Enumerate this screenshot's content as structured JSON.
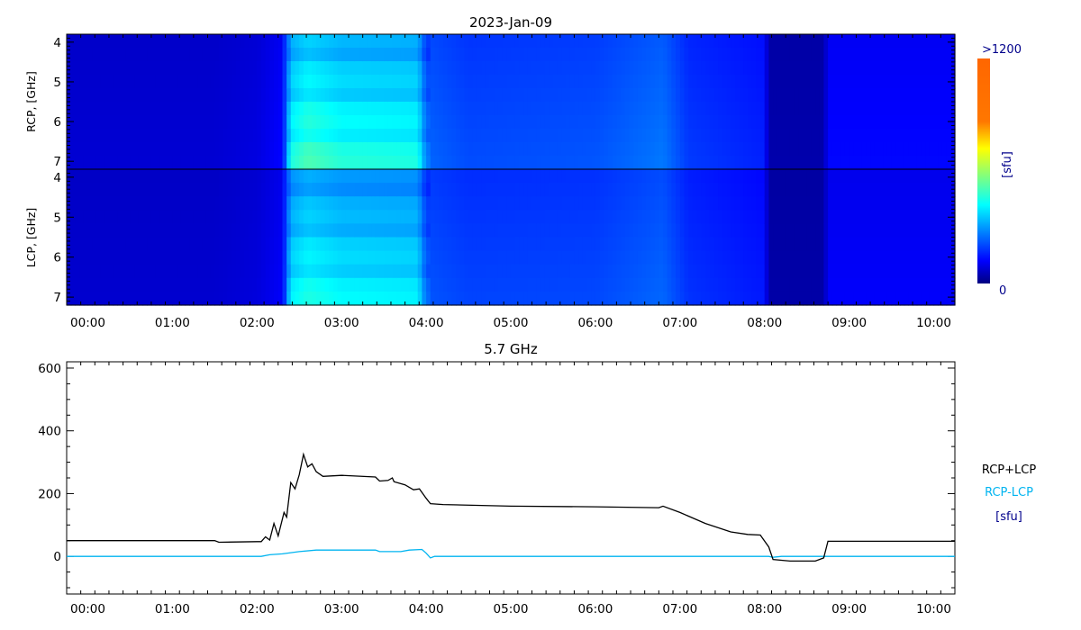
{
  "chart_data": [
    {
      "type": "heatmap",
      "title": "2023-Jan-09",
      "panels": [
        {
          "name": "RCP",
          "ylabel": "RCP, [GHz]"
        },
        {
          "name": "LCP",
          "ylabel": "LCP, [GHz]"
        }
      ],
      "yticks": [
        "4",
        "5",
        "6",
        "7"
      ],
      "ylim": [
        3.8,
        7.2
      ],
      "xlim_hours": [
        -0.25,
        10.25
      ],
      "xticks": [
        "00:00",
        "01:00",
        "02:00",
        "03:00",
        "04:00",
        "05:00",
        "06:00",
        "07:00",
        "08:00",
        "09:00",
        "10:00"
      ],
      "colorbar": {
        "max_label": ">1200",
        "min_label": "0",
        "unit": "[sfu]",
        "range": [
          0,
          1200
        ],
        "colormap": "jet"
      },
      "intensity_profile_sfu": {
        "RCP": [
          [
            -0.25,
            95
          ],
          [
            1.5,
            95
          ],
          [
            2.0,
            110
          ],
          [
            2.3,
            150
          ],
          [
            2.4,
            420
          ],
          [
            2.6,
            470
          ],
          [
            3.0,
            430
          ],
          [
            3.9,
            420
          ],
          [
            4.0,
            260
          ],
          [
            4.5,
            230
          ],
          [
            6.0,
            240
          ],
          [
            6.8,
            280
          ],
          [
            7.1,
            210
          ],
          [
            8.0,
            180
          ],
          [
            8.05,
            50
          ],
          [
            8.7,
            50
          ],
          [
            8.75,
            150
          ],
          [
            10.25,
            150
          ]
        ],
        "LCP": [
          [
            -0.25,
            90
          ],
          [
            1.5,
            90
          ],
          [
            2.0,
            105
          ],
          [
            2.3,
            140
          ],
          [
            2.4,
            380
          ],
          [
            2.6,
            420
          ],
          [
            3.0,
            390
          ],
          [
            3.9,
            380
          ],
          [
            4.0,
            240
          ],
          [
            4.5,
            220
          ],
          [
            6.0,
            225
          ],
          [
            6.8,
            260
          ],
          [
            7.1,
            200
          ],
          [
            8.0,
            170
          ],
          [
            8.05,
            45
          ],
          [
            8.7,
            45
          ],
          [
            8.75,
            140
          ],
          [
            10.25,
            140
          ]
        ]
      }
    },
    {
      "type": "line",
      "title": "5.7 GHz",
      "ylabel": "[sfu]",
      "ylim": [
        -120,
        620
      ],
      "yticks": [
        0,
        200,
        400,
        600
      ],
      "xlim_hours": [
        -0.25,
        10.25
      ],
      "xticks": [
        "00:00",
        "01:00",
        "02:00",
        "03:00",
        "04:00",
        "05:00",
        "06:00",
        "07:00",
        "08:00",
        "09:00",
        "10:00"
      ],
      "legend": {
        "placement": "right",
        "unit": "[sfu]"
      },
      "series": [
        {
          "name": "RCP+LCP",
          "color": "#000000",
          "x": [
            -0.25,
            1.5,
            1.55,
            2.0,
            2.05,
            2.1,
            2.15,
            2.2,
            2.25,
            2.32,
            2.35,
            2.4,
            2.45,
            2.5,
            2.55,
            2.6,
            2.65,
            2.7,
            2.78,
            3.0,
            3.4,
            3.45,
            3.55,
            3.6,
            3.62,
            3.75,
            3.85,
            3.92,
            4.0,
            4.05,
            4.2,
            5.0,
            6.0,
            6.75,
            6.8,
            7.0,
            7.3,
            7.6,
            7.8,
            7.95,
            8.05,
            8.1,
            8.3,
            8.6,
            8.7,
            8.75,
            10.25
          ],
          "y": [
            50,
            50,
            45,
            47,
            47,
            62,
            52,
            105,
            65,
            140,
            125,
            235,
            215,
            260,
            325,
            285,
            295,
            270,
            255,
            258,
            253,
            240,
            242,
            250,
            238,
            228,
            212,
            215,
            185,
            168,
            165,
            160,
            158,
            155,
            160,
            140,
            105,
            78,
            70,
            68,
            30,
            -10,
            -15,
            -15,
            -5,
            48,
            48
          ]
        },
        {
          "name": "RCP-LCP",
          "color": "#00b4f0",
          "x": [
            -0.25,
            2.05,
            2.15,
            2.3,
            2.5,
            2.7,
            3.4,
            3.45,
            3.7,
            3.8,
            3.95,
            4.0,
            4.05,
            4.1,
            8.05,
            8.1,
            8.2,
            10.25
          ],
          "y": [
            0,
            0,
            5,
            8,
            15,
            20,
            20,
            15,
            15,
            20,
            22,
            10,
            -5,
            0,
            0,
            -3,
            0,
            0
          ]
        }
      ]
    }
  ]
}
